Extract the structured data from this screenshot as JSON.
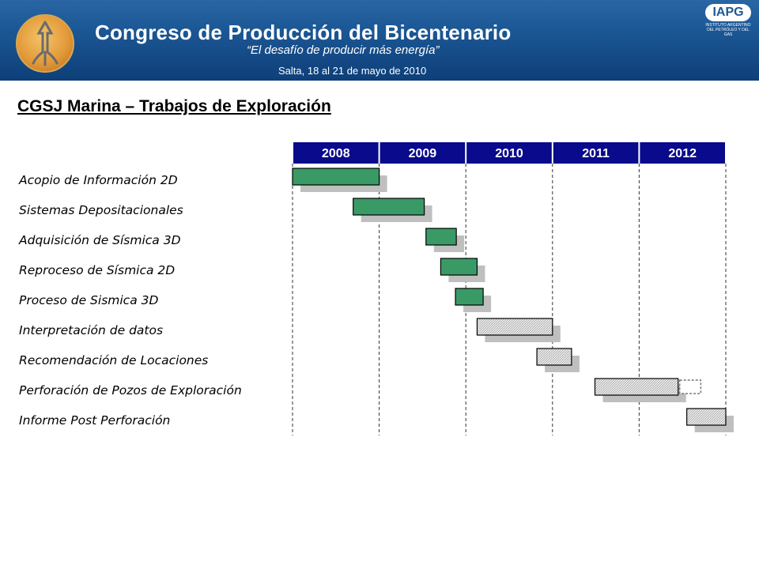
{
  "banner": {
    "title": "Congreso de Producción del Bicentenario",
    "subtitle": "“El desafío de producir más energía”",
    "venue": "Salta, 18 al 21 de mayo de 2010",
    "brand_mark": "IAPG",
    "brand_org": "INSTITUTO ARGENTINO DEL PETRÓLEO Y DEL GAS"
  },
  "page_title": "CGSJ Marina – Trabajos de Exploración",
  "colors": {
    "banner": "#1c5896",
    "year_header": "#0a0a8c",
    "completed": "#3a9a66",
    "planned": "#d9d9d9",
    "shadow": "#bfbfbf"
  },
  "chart_data": {
    "type": "gantt",
    "time_axis": {
      "start": 2008.0,
      "end": 2013.0,
      "labels": [
        "2008",
        "2009",
        "2010",
        "2011",
        "2012"
      ]
    },
    "tasks": [
      {
        "label": "Acopio de Información 2D",
        "start": 2008.0,
        "end": 2009.0,
        "status": "completed"
      },
      {
        "label": "Sistemas Depositacionales",
        "start": 2008.7,
        "end": 2009.52,
        "status": "completed"
      },
      {
        "label": "Adquisición de Sísmica 3D",
        "start": 2009.54,
        "end": 2009.89,
        "status": "completed"
      },
      {
        "label": "Reproceso de Sísmica 2D",
        "start": 2009.71,
        "end": 2010.13,
        "status": "completed"
      },
      {
        "label": "Proceso de Sismica 3D",
        "start": 2009.88,
        "end": 2010.2,
        "status": "completed"
      },
      {
        "label": "Interpretación de datos",
        "start": 2010.13,
        "end": 2011.0,
        "status": "planned"
      },
      {
        "label": "Recomendación de Locaciones",
        "start": 2010.82,
        "end": 2011.22,
        "status": "planned"
      },
      {
        "label": "Perforación de Pozos de Exploración",
        "start": 2011.49,
        "end": 2012.45,
        "status": "planned",
        "extension_end": 2012.73
      },
      {
        "label": "Informe Post Perforación",
        "start": 2012.55,
        "end": 2013.0,
        "status": "planned"
      }
    ]
  }
}
